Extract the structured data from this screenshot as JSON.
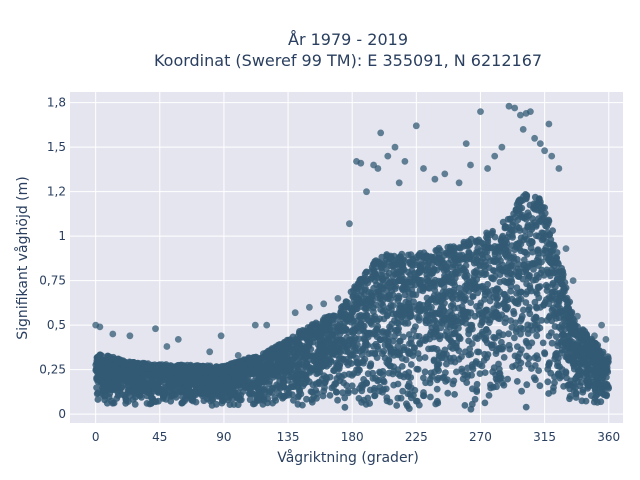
{
  "chart_data": {
    "type": "scatter",
    "title": "År 1979 - 2019",
    "subtitle": "Koordinat (Sweref 99 TM): E 355091, N 6212167",
    "xlabel": "Vågriktning (grader)",
    "ylabel": "Signifikant våghöjd (m)",
    "xlim": [
      -18,
      370
    ],
    "ylim": [
      -0.05,
      1.81
    ],
    "x_ticks": [
      0,
      45,
      90,
      135,
      180,
      225,
      270,
      315,
      360
    ],
    "x_tick_labels": [
      "0",
      "45",
      "90",
      "135",
      "180",
      "225",
      "270",
      "315",
      "360"
    ],
    "y_ticks": [
      0,
      0.25,
      0.5,
      0.75,
      1,
      1.25,
      1.5,
      1.75
    ],
    "y_tick_labels": [
      "0",
      "0,25",
      "0,5",
      "0,75",
      "1",
      "1,2",
      "1,5",
      "1,8"
    ],
    "grid": true,
    "legend": "none",
    "colors": {
      "marker": "#335b74",
      "plot_bg": "#e5e5f0",
      "text": "#2a3f5f"
    },
    "series": [
      {
        "envelope": {
          "direction": [
            0,
            20,
            45,
            90,
            120,
            150,
            170,
            180,
            200,
            225,
            250,
            270,
            290,
            300,
            315,
            325,
            335,
            345,
            360
          ],
          "upper_hs": [
            0.35,
            0.3,
            0.28,
            0.27,
            0.35,
            0.5,
            0.58,
            0.7,
            0.9,
            0.9,
            0.95,
            1.0,
            1.1,
            1.25,
            1.2,
            0.9,
            0.55,
            0.45,
            0.32
          ],
          "lower_hs": [
            0.05,
            0.05,
            0.05,
            0.04,
            0.04,
            0.03,
            0.02,
            0.02,
            0.01,
            0.01,
            0.01,
            0.01,
            0.02,
            0.03,
            0.04,
            0.05,
            0.05,
            0.05,
            0.05
          ]
        },
        "outliers": [
          [
            0,
            0.5
          ],
          [
            3,
            0.49
          ],
          [
            12,
            0.45
          ],
          [
            24,
            0.44
          ],
          [
            42,
            0.48
          ],
          [
            50,
            0.38
          ],
          [
            58,
            0.42
          ],
          [
            80,
            0.35
          ],
          [
            88,
            0.44
          ],
          [
            100,
            0.33
          ],
          [
            112,
            0.5
          ],
          [
            120,
            0.5
          ],
          [
            140,
            0.57
          ],
          [
            150,
            0.6
          ],
          [
            160,
            0.62
          ],
          [
            170,
            0.65
          ],
          [
            178,
            1.07
          ],
          [
            183,
            1.42
          ],
          [
            186,
            1.41
          ],
          [
            190,
            1.25
          ],
          [
            195,
            1.4
          ],
          [
            198,
            1.38
          ],
          [
            200,
            1.58
          ],
          [
            205,
            1.45
          ],
          [
            210,
            1.5
          ],
          [
            213,
            1.3
          ],
          [
            217,
            1.42
          ],
          [
            225,
            1.62
          ],
          [
            230,
            1.38
          ],
          [
            238,
            1.32
          ],
          [
            245,
            1.35
          ],
          [
            255,
            1.3
          ],
          [
            260,
            1.52
          ],
          [
            263,
            1.4
          ],
          [
            270,
            1.7
          ],
          [
            275,
            1.38
          ],
          [
            280,
            1.45
          ],
          [
            285,
            1.5
          ],
          [
            290,
            1.73
          ],
          [
            294,
            1.72
          ],
          [
            298,
            1.68
          ],
          [
            300,
            1.6
          ],
          [
            302,
            1.69
          ],
          [
            305,
            1.7
          ],
          [
            308,
            1.55
          ],
          [
            312,
            1.52
          ],
          [
            315,
            1.48
          ],
          [
            318,
            1.63
          ],
          [
            320,
            1.45
          ],
          [
            325,
            1.38
          ],
          [
            330,
            0.93
          ],
          [
            335,
            0.75
          ],
          [
            338,
            0.55
          ],
          [
            342,
            0.47
          ],
          [
            350,
            0.44
          ],
          [
            355,
            0.5
          ],
          [
            358,
            0.42
          ]
        ]
      }
    ]
  }
}
